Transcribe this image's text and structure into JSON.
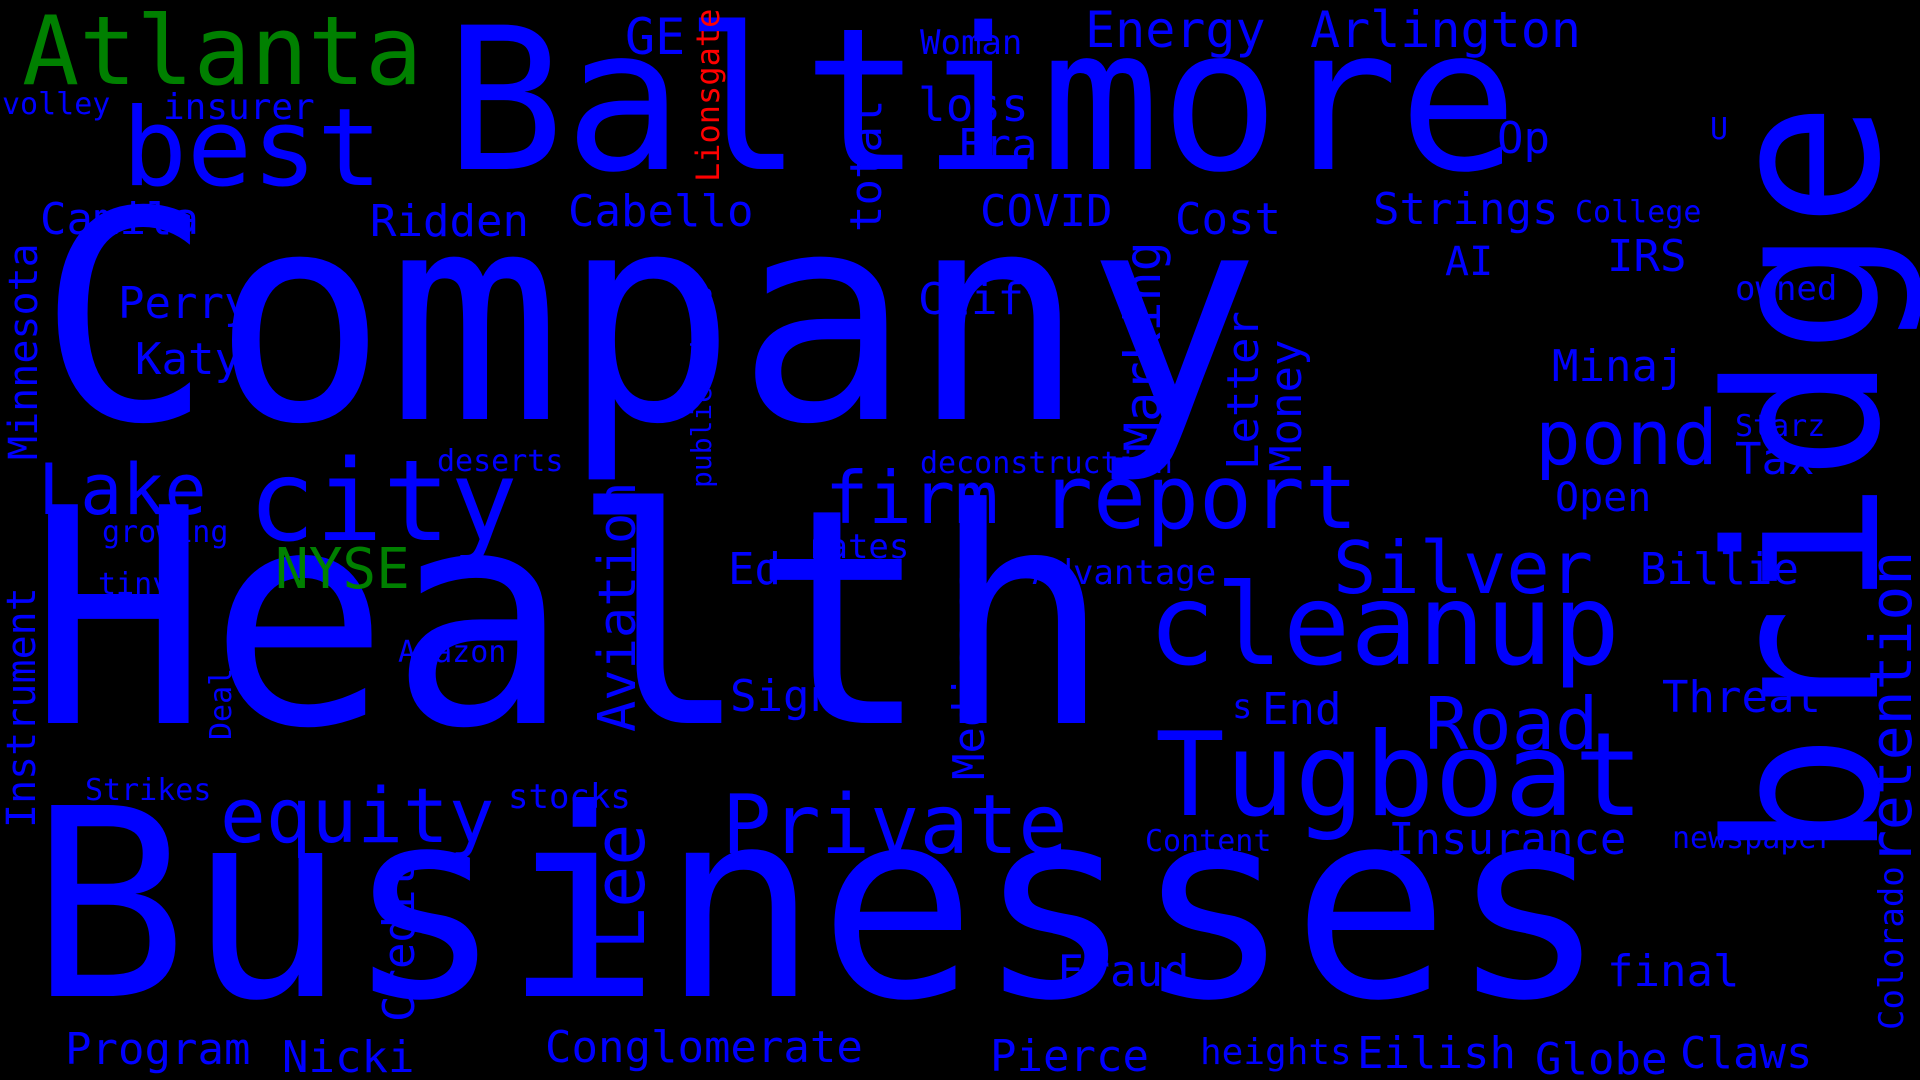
{
  "colors": {
    "background": "#000000",
    "blue": "#0000ff",
    "green": "#008000",
    "red": "#ff0000"
  },
  "words": [
    {
      "text": "Company",
      "color": "blue"
    },
    {
      "text": "Health",
      "color": "blue"
    },
    {
      "text": "Businesses",
      "color": "blue"
    },
    {
      "text": "Baltimore",
      "color": "blue"
    },
    {
      "text": "bridge",
      "color": "blue"
    },
    {
      "text": "Atlanta",
      "color": "green"
    },
    {
      "text": "best",
      "color": "blue"
    },
    {
      "text": "city",
      "color": "blue"
    },
    {
      "text": "cleanup",
      "color": "blue"
    },
    {
      "text": "Tugboat",
      "color": "blue"
    },
    {
      "text": "report",
      "color": "blue"
    },
    {
      "text": "Private",
      "color": "blue"
    },
    {
      "text": "equity",
      "color": "blue"
    },
    {
      "text": "pond",
      "color": "blue"
    },
    {
      "text": "firm",
      "color": "blue"
    },
    {
      "text": "Silver",
      "color": "blue"
    },
    {
      "text": "Road",
      "color": "blue"
    },
    {
      "text": "Lake",
      "color": "blue"
    },
    {
      "text": "retention",
      "color": "blue"
    },
    {
      "text": "Energy",
      "color": "blue"
    },
    {
      "text": "Arlington",
      "color": "blue"
    },
    {
      "text": "GE",
      "color": "blue"
    },
    {
      "text": "Lionsgate",
      "color": "red"
    },
    {
      "text": "Woman",
      "color": "blue"
    },
    {
      "text": "volley",
      "color": "blue"
    },
    {
      "text": "insurer",
      "color": "blue"
    },
    {
      "text": "loss",
      "color": "blue"
    },
    {
      "text": "Era",
      "color": "blue"
    },
    {
      "text": "total",
      "color": "blue"
    },
    {
      "text": "Op",
      "color": "blue"
    },
    {
      "text": "U",
      "color": "blue"
    },
    {
      "text": "Camila",
      "color": "blue"
    },
    {
      "text": "Ridden",
      "color": "blue"
    },
    {
      "text": "Cabello",
      "color": "blue"
    },
    {
      "text": "COVID",
      "color": "blue"
    },
    {
      "text": "Cost",
      "color": "blue"
    },
    {
      "text": "Strings",
      "color": "blue"
    },
    {
      "text": "College",
      "color": "blue"
    },
    {
      "text": "IRS",
      "color": "blue"
    },
    {
      "text": "AI",
      "color": "blue"
    },
    {
      "text": "owned",
      "color": "blue"
    },
    {
      "text": "Perry",
      "color": "blue"
    },
    {
      "text": "Cliff",
      "color": "blue"
    },
    {
      "text": "Marking",
      "color": "blue"
    },
    {
      "text": "Minaj",
      "color": "blue"
    },
    {
      "text": "Katy",
      "color": "blue"
    },
    {
      "text": "Letter",
      "color": "blue"
    },
    {
      "text": "Money",
      "color": "blue"
    },
    {
      "text": "Starz",
      "color": "blue"
    },
    {
      "text": "Minnesota",
      "color": "blue"
    },
    {
      "text": "publications",
      "color": "blue"
    },
    {
      "text": "deserts",
      "color": "blue"
    },
    {
      "text": "deconstruction",
      "color": "blue"
    },
    {
      "text": "Tax",
      "color": "blue"
    },
    {
      "text": "Open",
      "color": "blue"
    },
    {
      "text": "growing",
      "color": "blue"
    },
    {
      "text": "Aviation",
      "color": "blue"
    },
    {
      "text": "rates",
      "color": "blue"
    },
    {
      "text": "NYSE",
      "color": "green"
    },
    {
      "text": "Ed",
      "color": "blue"
    },
    {
      "text": "Medicare",
      "color": "blue"
    },
    {
      "text": "Advantage",
      "color": "blue"
    },
    {
      "text": "Billie",
      "color": "blue"
    },
    {
      "text": "tiny",
      "color": "blue"
    },
    {
      "text": "Instrument",
      "color": "blue"
    },
    {
      "text": "Amazon",
      "color": "blue"
    },
    {
      "text": "Deal",
      "color": "blue"
    },
    {
      "text": "Sign",
      "color": "blue"
    },
    {
      "text": "s",
      "color": "blue"
    },
    {
      "text": "End",
      "color": "blue"
    },
    {
      "text": "Threat",
      "color": "blue"
    },
    {
      "text": "Strikes",
      "color": "blue"
    },
    {
      "text": "stocks",
      "color": "blue"
    },
    {
      "text": "Lee",
      "color": "blue"
    },
    {
      "text": "Content",
      "color": "blue"
    },
    {
      "text": "Insurance",
      "color": "blue"
    },
    {
      "text": "newspaper",
      "color": "blue"
    },
    {
      "text": "Credit",
      "color": "blue"
    },
    {
      "text": "Fraud",
      "color": "blue"
    },
    {
      "text": "final",
      "color": "blue"
    },
    {
      "text": "Colorado",
      "color": "blue"
    },
    {
      "text": "Program",
      "color": "blue"
    },
    {
      "text": "Nicki",
      "color": "blue"
    },
    {
      "text": "Conglomerate",
      "color": "blue"
    },
    {
      "text": "Pierce",
      "color": "blue"
    },
    {
      "text": "heights",
      "color": "blue"
    },
    {
      "text": "Eilish",
      "color": "blue"
    },
    {
      "text": "Globe",
      "color": "blue"
    },
    {
      "text": "Claws",
      "color": "blue"
    }
  ]
}
